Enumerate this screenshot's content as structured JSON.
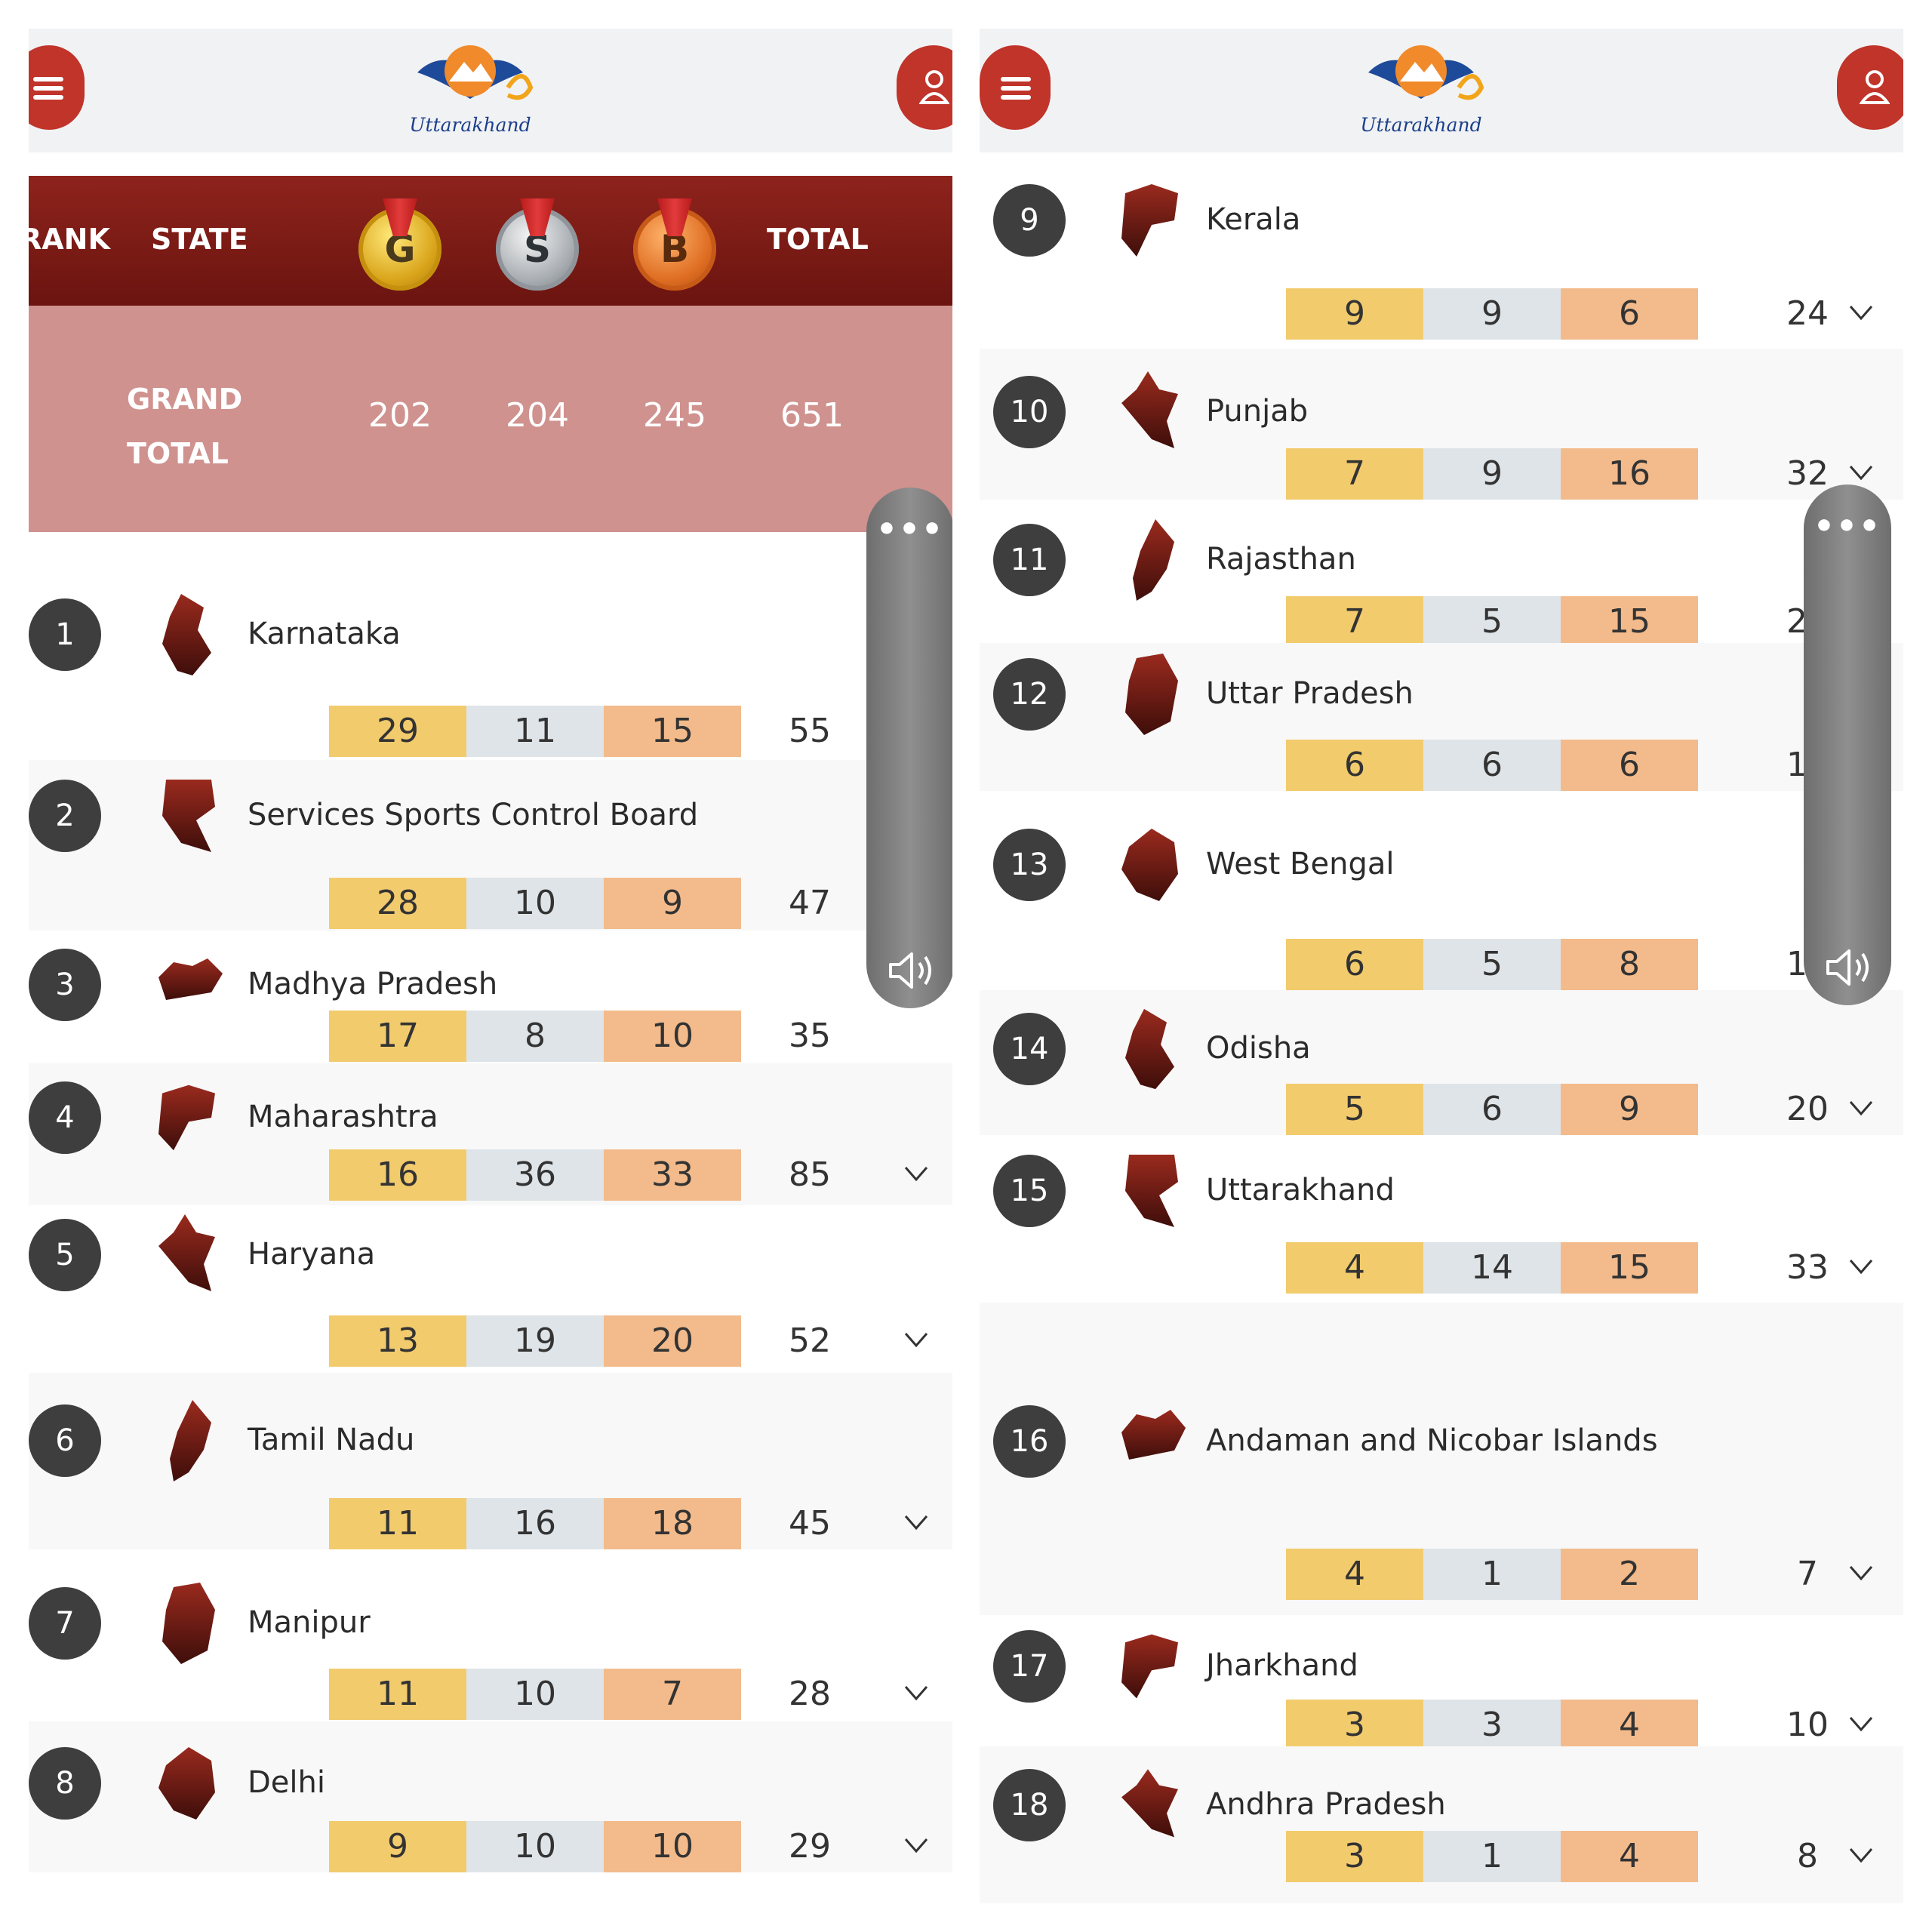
{
  "app": {
    "logo_text": "Uttarakhand"
  },
  "header": {
    "rank": "RANK",
    "state": "STATE",
    "gold": "G",
    "silver": "S",
    "bronze": "B",
    "total": "TOTAL"
  },
  "grand_total": {
    "label_line1": "GRAND",
    "label_line2": "TOTAL",
    "gold": "202",
    "silver": "204",
    "bronze": "245",
    "total": "651"
  },
  "colors": {
    "accent_red": "#c0342a",
    "header_dark_red": "#7a1913",
    "grand_total_bg": "#cf928f",
    "gold_cell": "#f2cb6d",
    "silver_cell": "#dfe4e8",
    "bronze_cell": "#f3bb8b"
  },
  "icons": {
    "menu": "hamburger-menu-icon",
    "user": "user-profile-icon",
    "expand": "chevron-down-icon",
    "more": "more-dots-icon",
    "volume": "volume-icon"
  },
  "left_rows": [
    {
      "rank": "1",
      "state": "Karnataka",
      "gold": "29",
      "silver": "11",
      "bronze": "15",
      "total": "55"
    },
    {
      "rank": "2",
      "state": "Services Sports Control Board",
      "gold": "28",
      "silver": "10",
      "bronze": "9",
      "total": "47"
    },
    {
      "rank": "3",
      "state": "Madhya Pradesh",
      "gold": "17",
      "silver": "8",
      "bronze": "10",
      "total": "35"
    },
    {
      "rank": "4",
      "state": "Maharashtra",
      "gold": "16",
      "silver": "36",
      "bronze": "33",
      "total": "85"
    },
    {
      "rank": "5",
      "state": "Haryana",
      "gold": "13",
      "silver": "19",
      "bronze": "20",
      "total": "52"
    },
    {
      "rank": "6",
      "state": "Tamil Nadu",
      "gold": "11",
      "silver": "16",
      "bronze": "18",
      "total": "45"
    },
    {
      "rank": "7",
      "state": "Manipur",
      "gold": "11",
      "silver": "10",
      "bronze": "7",
      "total": "28"
    },
    {
      "rank": "8",
      "state": "Delhi",
      "gold": "9",
      "silver": "10",
      "bronze": "10",
      "total": "29"
    }
  ],
  "right_rows": [
    {
      "rank": "9",
      "state": "Kerala",
      "gold": "9",
      "silver": "9",
      "bronze": "6",
      "total": "24"
    },
    {
      "rank": "10",
      "state": "Punjab",
      "gold": "7",
      "silver": "9",
      "bronze": "16",
      "total": "32"
    },
    {
      "rank": "11",
      "state": "Rajasthan",
      "gold": "7",
      "silver": "5",
      "bronze": "15",
      "total": "27"
    },
    {
      "rank": "12",
      "state": "Uttar Pradesh",
      "gold": "6",
      "silver": "6",
      "bronze": "6",
      "total": "18"
    },
    {
      "rank": "13",
      "state": "West Bengal",
      "gold": "6",
      "silver": "5",
      "bronze": "8",
      "total": "19"
    },
    {
      "rank": "14",
      "state": "Odisha",
      "gold": "5",
      "silver": "6",
      "bronze": "9",
      "total": "20"
    },
    {
      "rank": "15",
      "state": "Uttarakhand",
      "gold": "4",
      "silver": "14",
      "bronze": "15",
      "total": "33"
    },
    {
      "rank": "16",
      "state": "Andaman and Nicobar Islands",
      "gold": "4",
      "silver": "1",
      "bronze": "2",
      "total": "7"
    },
    {
      "rank": "17",
      "state": "Jharkhand",
      "gold": "3",
      "silver": "3",
      "bronze": "4",
      "total": "10"
    },
    {
      "rank": "18",
      "state": "Andhra Pradesh",
      "gold": "3",
      "silver": "1",
      "bronze": "4",
      "total": "8"
    }
  ]
}
